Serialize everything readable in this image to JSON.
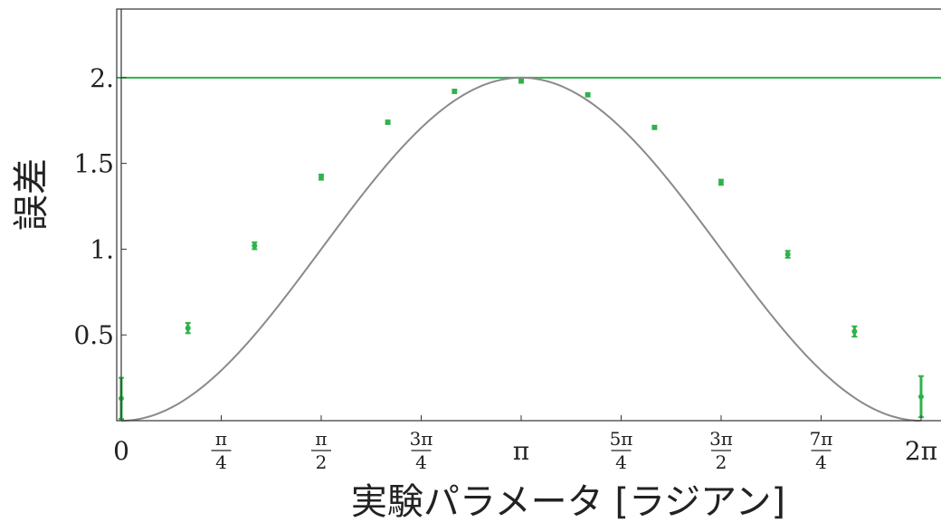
{
  "chart_data": {
    "type": "scatter",
    "title": "",
    "xlabel": "実験パラメータ [ラジアン]",
    "ylabel": "誤差",
    "xlim": [
      0,
      6.2832
    ],
    "ylim": [
      0,
      2.4
    ],
    "grid": false,
    "colors": {
      "points": "#2db34a",
      "reference_line": "#2db34a",
      "curve": "#8a8a8a",
      "frame": "#333333"
    },
    "x_ticks": [
      {
        "value": 0,
        "label": "0"
      },
      {
        "value": 0.7854,
        "num": "π",
        "den": "4"
      },
      {
        "value": 1.5708,
        "num": "π",
        "den": "2"
      },
      {
        "value": 2.3562,
        "num": "3π",
        "den": "4"
      },
      {
        "value": 3.1416,
        "label": "π"
      },
      {
        "value": 3.927,
        "num": "5π",
        "den": "4"
      },
      {
        "value": 4.7124,
        "num": "3π",
        "den": "2"
      },
      {
        "value": 5.4978,
        "num": "7π",
        "den": "4"
      },
      {
        "value": 6.2832,
        "label": "2π"
      }
    ],
    "y_ticks": [
      {
        "value": 0.5,
        "label": "0.5"
      },
      {
        "value": 1.0,
        "label": "1."
      },
      {
        "value": 1.5,
        "label": "1.5"
      },
      {
        "value": 2.0,
        "label": "2."
      }
    ],
    "reference_line": {
      "y": 2.0
    },
    "curve": {
      "function": "1 - cos(x)"
    },
    "points": [
      {
        "x": 0.0,
        "y": 0.13,
        "err": 0.12
      },
      {
        "x": 0.524,
        "y": 0.54,
        "err": 0.03
      },
      {
        "x": 1.047,
        "y": 1.02,
        "err": 0.02
      },
      {
        "x": 1.571,
        "y": 1.42,
        "err": 0.015
      },
      {
        "x": 2.094,
        "y": 1.74,
        "err": 0.01
      },
      {
        "x": 2.618,
        "y": 1.92,
        "err": 0.01
      },
      {
        "x": 3.142,
        "y": 1.98,
        "err": 0.01
      },
      {
        "x": 3.665,
        "y": 1.9,
        "err": 0.01
      },
      {
        "x": 4.189,
        "y": 1.71,
        "err": 0.01
      },
      {
        "x": 4.712,
        "y": 1.39,
        "err": 0.015
      },
      {
        "x": 5.236,
        "y": 0.97,
        "err": 0.02
      },
      {
        "x": 5.76,
        "y": 0.52,
        "err": 0.03
      },
      {
        "x": 6.283,
        "y": 0.14,
        "err": 0.12
      }
    ]
  }
}
